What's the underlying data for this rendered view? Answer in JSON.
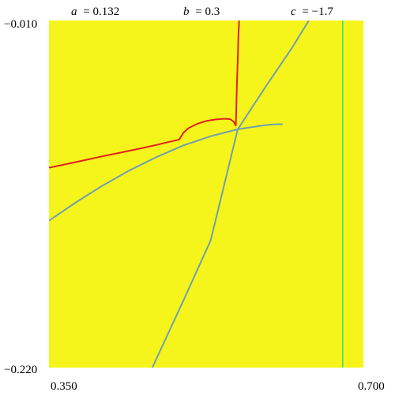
{
  "params": {
    "a": {
      "name": "a",
      "value": "= 0.132"
    },
    "b": {
      "name": "b",
      "value": "= 0.3"
    },
    "c": {
      "name": "c",
      "value": "= −1.7"
    }
  },
  "colors": {
    "background": "#f5f51c",
    "red_curve": "#e3211c",
    "blue_curve": "#6f9fae",
    "green_line": "#35d468"
  },
  "chart_data": {
    "type": "line",
    "title": "",
    "xlabel": "",
    "ylabel": "",
    "xlim": [
      0.35,
      0.7
    ],
    "ylim": [
      -0.22,
      -0.01
    ],
    "x_tick_labels": [
      "0.350",
      "0.700"
    ],
    "y_tick_labels": [
      "−0.010",
      "−0.220"
    ],
    "grid": false,
    "series": [
      {
        "color": "#e3211c",
        "x": [
          0.35,
          0.37,
          0.39,
          0.41,
          0.43,
          0.45,
          0.47,
          0.48,
          0.49,
          0.495
        ],
        "y": [
          -0.0991,
          -0.0968,
          -0.0945,
          -0.0921,
          -0.0899,
          -0.0876,
          -0.0852,
          -0.0839,
          -0.0827,
          -0.082
        ]
      },
      {
        "color": "#e3211c",
        "x": [
          0.495,
          0.5,
          0.505,
          0.515,
          0.525,
          0.535,
          0.545,
          0.552,
          0.556,
          0.558
        ],
        "y": [
          -0.082,
          -0.0777,
          -0.0752,
          -0.0725,
          -0.0708,
          -0.0699,
          -0.0694,
          -0.0697,
          -0.0715,
          -0.0738
        ]
      },
      {
        "color": "#e3211c",
        "x": [
          0.558,
          0.5585,
          0.559,
          0.5595,
          0.56,
          0.5605,
          0.561,
          0.5615,
          0.562
        ],
        "y": [
          -0.0738,
          -0.064,
          -0.052,
          -0.044,
          -0.036,
          -0.026,
          -0.018,
          -0.012,
          -0.008
        ]
      },
      {
        "color": "#6f9fae",
        "x": [
          0.35,
          0.38,
          0.41,
          0.44,
          0.47,
          0.5,
          0.53,
          0.56,
          0.59,
          0.6,
          0.61
        ],
        "y": [
          -0.1311,
          -0.12,
          -0.1098,
          -0.1006,
          -0.0925,
          -0.0855,
          -0.08,
          -0.0758,
          -0.0734,
          -0.0728,
          -0.0727
        ]
      },
      {
        "color": "#6f9fae",
        "x": [
          0.465,
          0.5,
          0.53,
          0.56,
          0.59,
          0.62,
          0.645
        ],
        "y": [
          -0.22,
          -0.179,
          -0.143,
          -0.076,
          -0.051,
          -0.027,
          -0.005
        ]
      },
      {
        "color": "#35d468",
        "x": [
          0.677,
          0.677
        ],
        "y": [
          -0.22,
          -0.01
        ]
      }
    ]
  }
}
